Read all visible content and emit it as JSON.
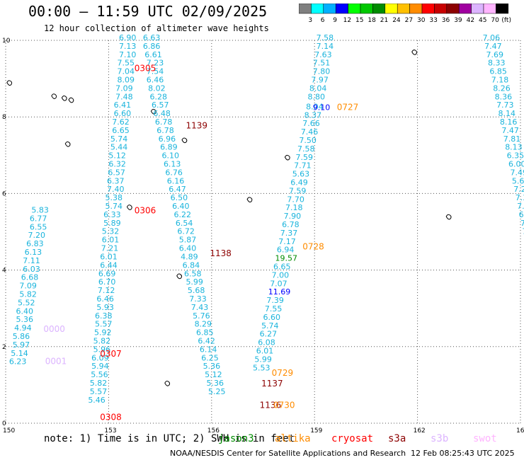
{
  "header": {
    "title": "00:00 – 11:59 UTC 02/09/2025",
    "subtitle": "12 hour collection of altimeter wave heights"
  },
  "legend": {
    "unit": "(ft)",
    "bins": [
      {
        "label": "3",
        "color": "#7f7f7f"
      },
      {
        "label": "6",
        "color": "#00ffff"
      },
      {
        "label": "9",
        "color": "#00b0ff"
      },
      {
        "label": "12",
        "color": "#0000ff"
      },
      {
        "label": "15",
        "color": "#00ff00"
      },
      {
        "label": "18",
        "color": "#00c800"
      },
      {
        "label": "21",
        "color": "#008c00"
      },
      {
        "label": "24",
        "color": "#ffff00"
      },
      {
        "label": "27",
        "color": "#ffc000"
      },
      {
        "label": "30",
        "color": "#ff8c00"
      },
      {
        "label": "33",
        "color": "#ff0000"
      },
      {
        "label": "36",
        "color": "#c80000"
      },
      {
        "label": "39",
        "color": "#8c0000"
      },
      {
        "label": "42",
        "color": "#a000a0"
      },
      {
        "label": "45",
        "color": "#dcb4ff"
      },
      {
        "label": "70",
        "color": "#ffb4ff"
      },
      {
        "label": "",
        "color": "#000000"
      }
    ]
  },
  "map": {
    "lon_range": [
      150,
      165
    ],
    "lat_range": [
      0,
      10
    ],
    "lon_ticks": [
      "150",
      "153",
      "156",
      "159",
      "162",
      "165"
    ],
    "lat_ticks": [
      "0",
      "2",
      "4",
      "6",
      "8",
      "10"
    ],
    "wave_color": "#1ab4dc",
    "tracks": [
      {
        "name": "t1",
        "color": "#1ab4dc",
        "points": [
          [
            153.3,
            10.0,
            "6.90"
          ],
          [
            153.3,
            9.78,
            "7.13"
          ],
          [
            153.3,
            9.56,
            "7.10"
          ],
          [
            153.25,
            9.34,
            "7.55"
          ],
          [
            153.25,
            9.12,
            "7.04"
          ],
          [
            153.25,
            8.9,
            "8.09"
          ],
          [
            153.2,
            8.68,
            "7.09"
          ],
          [
            153.2,
            8.46,
            "7.48"
          ],
          [
            153.15,
            8.24,
            "6.41"
          ],
          [
            153.15,
            8.02,
            "6.60"
          ],
          [
            153.1,
            7.8,
            "7.62"
          ],
          [
            153.1,
            7.58,
            "6.65"
          ],
          [
            153.05,
            7.36,
            "5.74"
          ],
          [
            153.05,
            7.14,
            "5.44"
          ],
          [
            153.0,
            6.92,
            "5.12"
          ],
          [
            153.0,
            6.7,
            "6.32"
          ],
          [
            152.98,
            6.48,
            "6.57"
          ],
          [
            152.95,
            6.26,
            "6.37"
          ],
          [
            152.95,
            6.04,
            "7.40"
          ],
          [
            152.9,
            5.82,
            "5.38"
          ],
          [
            152.9,
            5.6,
            "5.74"
          ],
          [
            152.85,
            5.38,
            "6.33"
          ],
          [
            152.85,
            5.16,
            "5.89"
          ],
          [
            152.8,
            4.94,
            "5.32"
          ],
          [
            152.8,
            4.72,
            "6.01"
          ],
          [
            152.78,
            4.5,
            "7.21"
          ],
          [
            152.75,
            4.28,
            "6.01"
          ],
          [
            152.75,
            4.06,
            "6.44"
          ],
          [
            152.7,
            3.84,
            "6.69"
          ],
          [
            152.7,
            3.62,
            "6.70"
          ],
          [
            152.68,
            3.4,
            "7.12"
          ],
          [
            152.65,
            3.18,
            "6.46"
          ],
          [
            152.65,
            2.96,
            "5.93"
          ],
          [
            152.6,
            2.74,
            "6.38"
          ],
          [
            152.6,
            2.52,
            "5.57"
          ],
          [
            152.58,
            2.3,
            "5.92"
          ],
          [
            152.55,
            2.08,
            "5.82"
          ],
          [
            152.55,
            1.86,
            "5.96"
          ],
          [
            152.5,
            1.64,
            "6.09"
          ],
          [
            152.5,
            1.42,
            "5.94"
          ],
          [
            152.48,
            1.2,
            "5.56"
          ],
          [
            152.45,
            0.98,
            "5.82"
          ],
          [
            152.45,
            0.76,
            "5.57"
          ],
          [
            152.4,
            0.54,
            "5.46"
          ]
        ]
      },
      {
        "name": "t2",
        "color": "#1ab4dc",
        "points": [
          [
            150.75,
            5.5,
            "5.83"
          ],
          [
            150.7,
            5.28,
            "6.77"
          ],
          [
            150.7,
            5.06,
            "6.55"
          ],
          [
            150.65,
            4.84,
            "7.20"
          ],
          [
            150.6,
            4.62,
            "6.83"
          ],
          [
            150.55,
            4.4,
            "6.13"
          ],
          [
            150.5,
            4.18,
            "7.11"
          ],
          [
            150.5,
            3.96,
            "6.03"
          ],
          [
            150.45,
            3.74,
            "6.68"
          ],
          [
            150.4,
            3.52,
            "7.09"
          ],
          [
            150.4,
            3.3,
            "5.82"
          ],
          [
            150.35,
            3.08,
            "5.52"
          ],
          [
            150.3,
            2.86,
            "6.40"
          ],
          [
            150.3,
            2.64,
            "5.36"
          ],
          [
            150.25,
            2.42,
            "4.94"
          ],
          [
            150.2,
            2.2,
            "5.86"
          ],
          [
            150.2,
            1.98,
            "5.97"
          ],
          [
            150.15,
            1.76,
            "5.14"
          ],
          [
            150.1,
            1.54,
            "6.23"
          ]
        ]
      },
      {
        "name": "t3",
        "color": "#1ab4dc",
        "points": [
          [
            154.0,
            10.0,
            "6.63"
          ],
          [
            154.0,
            9.78,
            "6.86"
          ],
          [
            154.05,
            9.56,
            "6.61"
          ],
          [
            154.1,
            9.34,
            "7.23"
          ],
          [
            154.1,
            9.12,
            "7.54"
          ],
          [
            154.1,
            8.9,
            "6.46"
          ],
          [
            154.15,
            8.68,
            "8.02"
          ],
          [
            154.2,
            8.46,
            "6.28"
          ],
          [
            154.25,
            8.24,
            "6.57"
          ],
          [
            154.3,
            8.02,
            "6.48"
          ],
          [
            154.35,
            7.8,
            "6.78"
          ],
          [
            154.4,
            7.58,
            "6.78"
          ],
          [
            154.45,
            7.36,
            "6.96"
          ],
          [
            154.5,
            7.14,
            "6.89"
          ],
          [
            154.55,
            6.92,
            "6.10"
          ],
          [
            154.6,
            6.7,
            "6.13"
          ],
          [
            154.65,
            6.48,
            "6.76"
          ],
          [
            154.7,
            6.26,
            "6.16"
          ],
          [
            154.75,
            6.04,
            "6.47"
          ],
          [
            154.8,
            5.82,
            "6.50"
          ],
          [
            154.85,
            5.6,
            "6.40"
          ],
          [
            154.9,
            5.38,
            "6.22"
          ],
          [
            154.95,
            5.16,
            "6.54"
          ],
          [
            155.0,
            4.94,
            "6.72"
          ],
          [
            155.05,
            4.72,
            "5.87"
          ],
          [
            155.05,
            4.5,
            "6.40"
          ],
          [
            155.1,
            4.28,
            "4.89"
          ],
          [
            155.15,
            4.06,
            "6.84"
          ],
          [
            155.2,
            3.84,
            "6.58"
          ],
          [
            155.25,
            3.62,
            "5.99"
          ],
          [
            155.3,
            3.4,
            "5.68"
          ],
          [
            155.35,
            3.18,
            "7.33"
          ],
          [
            155.4,
            2.96,
            "7.43"
          ],
          [
            155.45,
            2.74,
            "5.76"
          ],
          [
            155.5,
            2.52,
            "8.29"
          ],
          [
            155.55,
            2.3,
            "6.85"
          ],
          [
            155.6,
            2.08,
            "6.42"
          ],
          [
            155.65,
            1.86,
            "6.14"
          ],
          [
            155.7,
            1.64,
            "6.25"
          ],
          [
            155.75,
            1.42,
            "5.36"
          ],
          [
            155.8,
            1.2,
            "5.12"
          ],
          [
            155.85,
            0.98,
            "5.36"
          ],
          [
            155.9,
            0.76,
            "5.25"
          ]
        ]
      },
      {
        "name": "t4",
        "color": "#1ab4dc",
        "points": [
          [
            159.05,
            10.0,
            "7.58"
          ],
          [
            159.05,
            9.78,
            "7.14"
          ],
          [
            159.0,
            9.56,
            "7.63"
          ],
          [
            158.95,
            9.34,
            "7.51"
          ],
          [
            158.95,
            9.12,
            "7.80"
          ],
          [
            158.9,
            8.9,
            "7.97"
          ],
          [
            158.85,
            8.68,
            "8.04"
          ],
          [
            158.8,
            8.46,
            "8.80"
          ],
          [
            158.75,
            8.2,
            "8.04"
          ],
          [
            158.7,
            7.98,
            "8.37"
          ],
          [
            158.65,
            7.76,
            "7.66"
          ],
          [
            158.6,
            7.54,
            "7.46"
          ],
          [
            158.55,
            7.32,
            "7.50"
          ],
          [
            158.5,
            7.1,
            "7.58"
          ],
          [
            158.45,
            6.88,
            "7.59"
          ],
          [
            158.4,
            6.66,
            "7.71"
          ],
          [
            158.35,
            6.44,
            "5.63"
          ],
          [
            158.3,
            6.22,
            "6.49"
          ],
          [
            158.25,
            6.0,
            "7.59"
          ],
          [
            158.2,
            5.78,
            "7.70"
          ],
          [
            158.15,
            5.56,
            "7.18"
          ],
          [
            158.1,
            5.34,
            "7.90"
          ],
          [
            158.05,
            5.12,
            "6.78"
          ],
          [
            158.0,
            4.9,
            "7.37"
          ],
          [
            157.95,
            4.68,
            "7.17"
          ],
          [
            157.9,
            4.46,
            "6.94"
          ],
          [
            157.8,
            4.02,
            "6.65"
          ],
          [
            157.75,
            3.8,
            "7.00"
          ],
          [
            157.7,
            3.58,
            "7.07"
          ],
          [
            157.6,
            3.14,
            "7.39"
          ],
          [
            157.55,
            2.92,
            "7.55"
          ],
          [
            157.5,
            2.7,
            "6.60"
          ],
          [
            157.45,
            2.48,
            "5.74"
          ],
          [
            157.4,
            2.26,
            "6.27"
          ],
          [
            157.35,
            2.04,
            "6.08"
          ],
          [
            157.3,
            1.82,
            "6.01"
          ],
          [
            157.25,
            1.6,
            "5.99"
          ],
          [
            157.2,
            1.38,
            "5.53"
          ]
        ]
      },
      {
        "name": "t5",
        "color": "#1ab4dc",
        "points": [
          [
            163.9,
            10.0,
            "7.06"
          ],
          [
            163.95,
            9.78,
            "7.47"
          ],
          [
            164.0,
            9.56,
            "7.69"
          ],
          [
            164.05,
            9.34,
            "8.33"
          ],
          [
            164.1,
            9.12,
            "6.85"
          ],
          [
            164.15,
            8.9,
            "7.18"
          ],
          [
            164.2,
            8.68,
            "8.26"
          ],
          [
            164.25,
            8.46,
            "8.36"
          ],
          [
            164.3,
            8.24,
            "7.73"
          ],
          [
            164.35,
            8.02,
            "8.14"
          ],
          [
            164.4,
            7.8,
            "8.16"
          ],
          [
            164.45,
            7.58,
            "7.47"
          ],
          [
            164.5,
            7.36,
            "7.81"
          ],
          [
            164.55,
            7.14,
            "8.13"
          ],
          [
            164.6,
            6.92,
            "6.35"
          ],
          [
            164.65,
            6.7,
            "6.00"
          ],
          [
            164.7,
            6.48,
            "7.49"
          ],
          [
            164.75,
            6.26,
            "5.69"
          ],
          [
            164.8,
            6.04,
            "7.29"
          ],
          [
            164.85,
            5.82,
            "7.37"
          ],
          [
            164.9,
            5.6,
            "7.47"
          ],
          [
            164.95,
            5.38,
            "6.39"
          ],
          [
            165.0,
            5.16,
            "7.28"
          ],
          [
            165.05,
            4.94,
            "7.29"
          ],
          [
            165.1,
            4.72,
            "5.8"
          ],
          [
            165.1,
            4.5,
            "5.0"
          ],
          [
            165.15,
            4.28,
            "6."
          ],
          [
            165.2,
            4.06,
            "6."
          ]
        ]
      }
    ],
    "highlights": [
      {
        "lon": 158.95,
        "lat": 8.18,
        "label": "9.10",
        "color": "#0000ff"
      },
      {
        "lon": 157.85,
        "lat": 4.24,
        "label": "19.57",
        "color": "#008c00"
      },
      {
        "lon": 157.65,
        "lat": 3.36,
        "label": "11.69",
        "color": "#0000ff"
      },
      {
        "lon": 165.15,
        "lat": 7.36,
        "label": "1",
        "color": "#1ab4dc"
      }
    ],
    "time_labels": [
      {
        "lon": 153.75,
        "lat": 9.2,
        "label": "0305",
        "color": "#ff0000"
      },
      {
        "lon": 153.75,
        "lat": 5.48,
        "label": "0306",
        "color": "#ff0000"
      },
      {
        "lon": 152.75,
        "lat": 1.74,
        "label": "0307",
        "color": "#ff0000"
      },
      {
        "lon": 152.75,
        "lat": 0.08,
        "label": "0308",
        "color": "#ff0000"
      },
      {
        "lon": 155.25,
        "lat": 7.7,
        "label": "1139",
        "color": "#8c0000"
      },
      {
        "lon": 155.95,
        "lat": 4.36,
        "label": "1138",
        "color": "#8c0000"
      },
      {
        "lon": 157.45,
        "lat": 0.96,
        "label": "1137",
        "color": "#8c0000"
      },
      {
        "lon": 157.4,
        "lat": 0.4,
        "label": "1136",
        "color": "#8c0000"
      },
      {
        "lon": 159.65,
        "lat": 8.18,
        "label": "0727",
        "color": "#ff8c00"
      },
      {
        "lon": 158.65,
        "lat": 4.54,
        "label": "0728",
        "color": "#ff8c00"
      },
      {
        "lon": 157.75,
        "lat": 1.24,
        "label": "0729",
        "color": "#ff8c00"
      },
      {
        "lon": 157.8,
        "lat": 0.4,
        "label": "0730",
        "color": "#ff8c00"
      },
      {
        "lon": 151.1,
        "lat": 2.38,
        "label": "0000",
        "color": "#dcb4ff"
      },
      {
        "lon": 151.15,
        "lat": 1.54,
        "label": "0001",
        "color": "#dcb4ff"
      }
    ],
    "islands": [
      {
        "lon": 150.1,
        "lat": 8.9
      },
      {
        "lon": 151.4,
        "lat": 8.55
      },
      {
        "lon": 151.7,
        "lat": 8.5
      },
      {
        "lon": 151.9,
        "lat": 8.45
      },
      {
        "lon": 151.8,
        "lat": 7.3
      },
      {
        "lon": 154.3,
        "lat": 8.15
      },
      {
        "lon": 155.2,
        "lat": 7.4
      },
      {
        "lon": 161.9,
        "lat": 9.7
      },
      {
        "lon": 153.6,
        "lat": 5.65
      },
      {
        "lon": 158.2,
        "lat": 6.95
      },
      {
        "lon": 162.9,
        "lat": 5.4
      },
      {
        "lon": 157.1,
        "lat": 5.85
      },
      {
        "lon": 155.05,
        "lat": 3.85
      },
      {
        "lon": 154.7,
        "lat": 1.05
      }
    ]
  },
  "footer": {
    "note": "note:  1) Time is in UTC;  2) SWH is in feet",
    "satellites": [
      {
        "label": "jason3",
        "color": "#008c00"
      },
      {
        "label": "altika",
        "color": "#ff8c00"
      },
      {
        "label": "cryosat",
        "color": "#ff0000"
      },
      {
        "label": "s3a",
        "color": "#8c0000"
      },
      {
        "label": "s3b",
        "color": "#dcb4ff"
      },
      {
        "label": "swot",
        "color": "#ffb4ff"
      }
    ],
    "credit": "NOAA/NESDIS Center for Satellite Applications and Research",
    "generated": "12 Feb 08:25:43 UTC 2025"
  }
}
